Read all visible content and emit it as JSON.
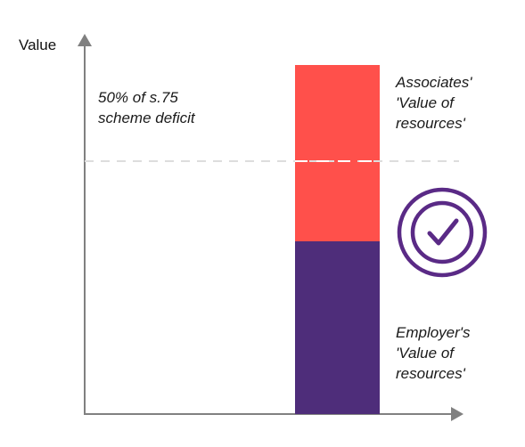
{
  "axes": {
    "y_label": "Value"
  },
  "threshold": {
    "label_line1": "50% of s.75",
    "label_line2": "scheme deficit"
  },
  "bar": {
    "associates_label_line1": "Associates'",
    "associates_label_line2": "'Value of",
    "associates_label_line3": "resources'",
    "employer_label_line1": "Employer's",
    "employer_label_line2": "'Value of",
    "employer_label_line3": "resources'"
  },
  "colors": {
    "associates": "#ff504b",
    "employer": "#4e2d7a",
    "axis": "#808080",
    "threshold_line": "#dddddd",
    "check_icon": "#5a2a86"
  },
  "icons": {
    "status": "check-circle-icon"
  }
}
